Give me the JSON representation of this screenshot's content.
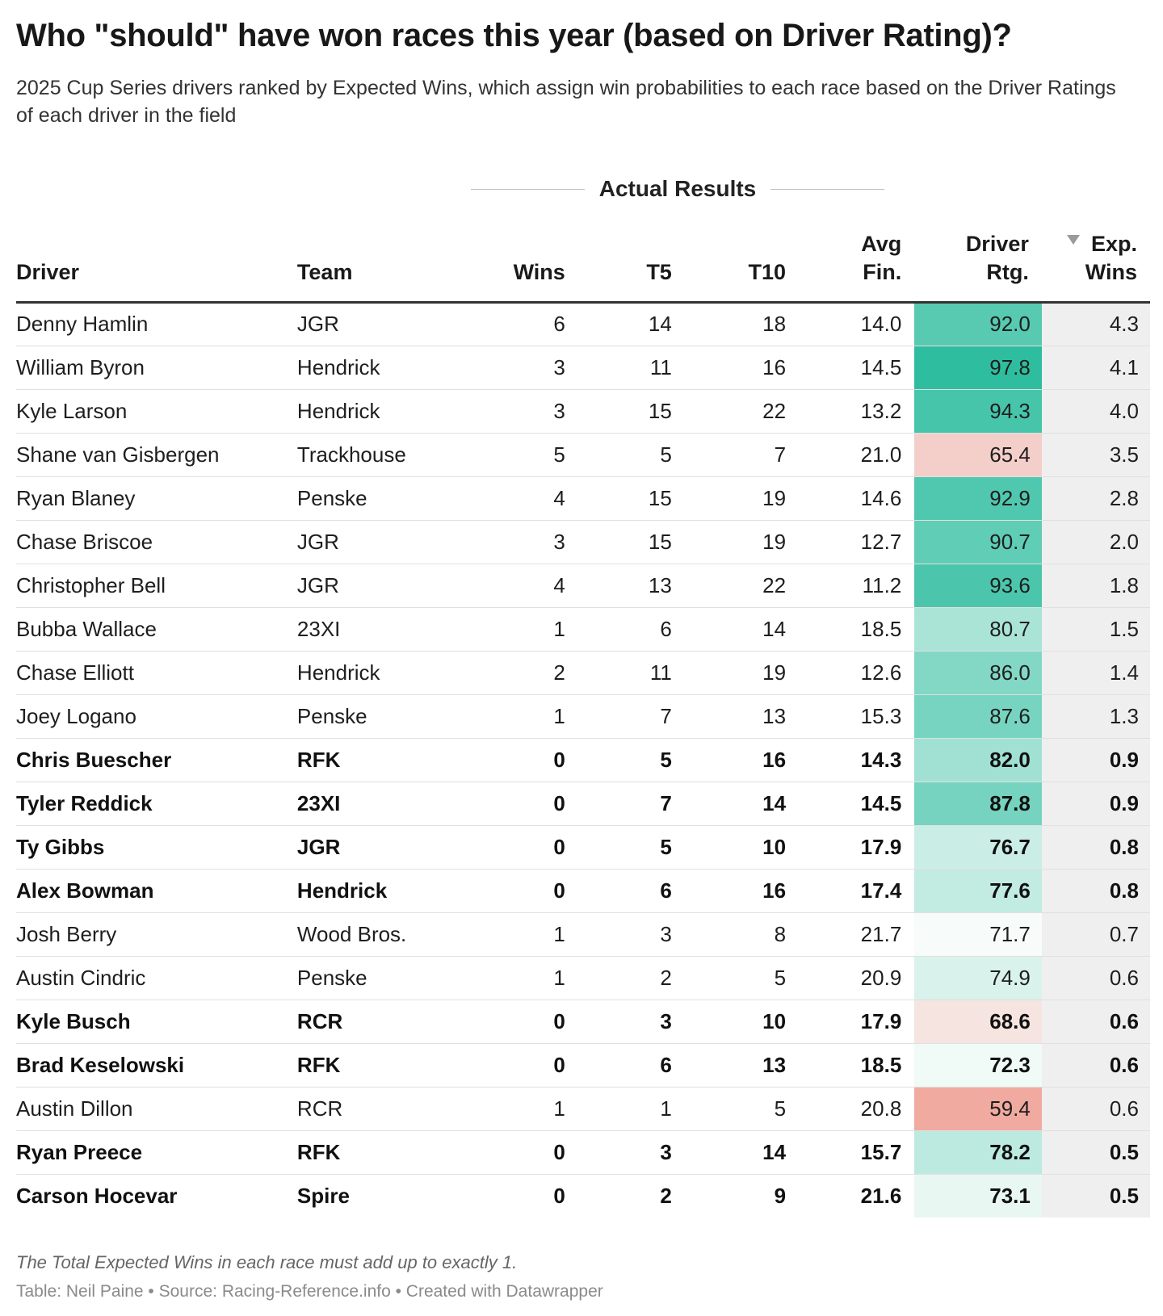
{
  "title": "Who \"should\" have won races this year (based on Driver Rating)?",
  "subtitle": "2025 Cup Series drivers ranked by Expected Wins, which assign win probabilities to each race based on the Driver Ratings of each driver in the field",
  "group_header": "Actual Results",
  "notes": "The Total Expected Wins in each race must add up to exactly 1.",
  "byline": "Table: Neil Paine • Source: Racing-Reference.info • Created with Datawrapper",
  "colors": {
    "rating_high": "#2ebd9f",
    "rating_mid": "#f7fcfa",
    "rating_low": "#f1aaa0",
    "exp_wins_bg": "#efefef",
    "header_rule": "#333333"
  },
  "chart_data": {
    "type": "table",
    "sorted_by": "Exp. Wins",
    "sort_order": "descending",
    "columns": [
      {
        "key": "driver",
        "label_lines": [
          "Driver"
        ],
        "align": "left"
      },
      {
        "key": "team",
        "label_lines": [
          "Team"
        ],
        "align": "left"
      },
      {
        "key": "wins",
        "label_lines": [
          "Wins"
        ],
        "align": "right"
      },
      {
        "key": "t5",
        "label_lines": [
          "T5"
        ],
        "align": "right"
      },
      {
        "key": "t10",
        "label_lines": [
          "T10"
        ],
        "align": "right"
      },
      {
        "key": "avg_fin",
        "label_lines": [
          "Avg",
          "Fin."
        ],
        "align": "right"
      },
      {
        "key": "driver_rtg",
        "label_lines": [
          "Driver",
          "Rtg."
        ],
        "align": "right"
      },
      {
        "key": "exp_wins",
        "label_lines": [
          "Exp.",
          "Wins"
        ],
        "align": "right",
        "sorted": true
      }
    ],
    "rows": [
      {
        "driver": "Denny Hamlin",
        "team": "JGR",
        "wins": 6,
        "t5": 14,
        "t10": 18,
        "avg_fin": "14.0",
        "driver_rtg": "92.0",
        "exp_wins": "4.3",
        "bold": false
      },
      {
        "driver": "William Byron",
        "team": "Hendrick",
        "wins": 3,
        "t5": 11,
        "t10": 16,
        "avg_fin": "14.5",
        "driver_rtg": "97.8",
        "exp_wins": "4.1",
        "bold": false
      },
      {
        "driver": "Kyle Larson",
        "team": "Hendrick",
        "wins": 3,
        "t5": 15,
        "t10": 22,
        "avg_fin": "13.2",
        "driver_rtg": "94.3",
        "exp_wins": "4.0",
        "bold": false
      },
      {
        "driver": "Shane van Gisbergen",
        "team": "Trackhouse",
        "wins": 5,
        "t5": 5,
        "t10": 7,
        "avg_fin": "21.0",
        "driver_rtg": "65.4",
        "exp_wins": "3.5",
        "bold": false
      },
      {
        "driver": "Ryan Blaney",
        "team": "Penske",
        "wins": 4,
        "t5": 15,
        "t10": 19,
        "avg_fin": "14.6",
        "driver_rtg": "92.9",
        "exp_wins": "2.8",
        "bold": false
      },
      {
        "driver": "Chase Briscoe",
        "team": "JGR",
        "wins": 3,
        "t5": 15,
        "t10": 19,
        "avg_fin": "12.7",
        "driver_rtg": "90.7",
        "exp_wins": "2.0",
        "bold": false
      },
      {
        "driver": "Christopher Bell",
        "team": "JGR",
        "wins": 4,
        "t5": 13,
        "t10": 22,
        "avg_fin": "11.2",
        "driver_rtg": "93.6",
        "exp_wins": "1.8",
        "bold": false
      },
      {
        "driver": "Bubba Wallace",
        "team": "23XI",
        "wins": 1,
        "t5": 6,
        "t10": 14,
        "avg_fin": "18.5",
        "driver_rtg": "80.7",
        "exp_wins": "1.5",
        "bold": false
      },
      {
        "driver": "Chase Elliott",
        "team": "Hendrick",
        "wins": 2,
        "t5": 11,
        "t10": 19,
        "avg_fin": "12.6",
        "driver_rtg": "86.0",
        "exp_wins": "1.4",
        "bold": false
      },
      {
        "driver": "Joey Logano",
        "team": "Penske",
        "wins": 1,
        "t5": 7,
        "t10": 13,
        "avg_fin": "15.3",
        "driver_rtg": "87.6",
        "exp_wins": "1.3",
        "bold": false
      },
      {
        "driver": "Chris Buescher",
        "team": "RFK",
        "wins": 0,
        "t5": 5,
        "t10": 16,
        "avg_fin": "14.3",
        "driver_rtg": "82.0",
        "exp_wins": "0.9",
        "bold": true
      },
      {
        "driver": "Tyler Reddick",
        "team": "23XI",
        "wins": 0,
        "t5": 7,
        "t10": 14,
        "avg_fin": "14.5",
        "driver_rtg": "87.8",
        "exp_wins": "0.9",
        "bold": true
      },
      {
        "driver": "Ty Gibbs",
        "team": "JGR",
        "wins": 0,
        "t5": 5,
        "t10": 10,
        "avg_fin": "17.9",
        "driver_rtg": "76.7",
        "exp_wins": "0.8",
        "bold": true
      },
      {
        "driver": "Alex Bowman",
        "team": "Hendrick",
        "wins": 0,
        "t5": 6,
        "t10": 16,
        "avg_fin": "17.4",
        "driver_rtg": "77.6",
        "exp_wins": "0.8",
        "bold": true
      },
      {
        "driver": "Josh Berry",
        "team": "Wood Bros.",
        "wins": 1,
        "t5": 3,
        "t10": 8,
        "avg_fin": "21.7",
        "driver_rtg": "71.7",
        "exp_wins": "0.7",
        "bold": false
      },
      {
        "driver": "Austin Cindric",
        "team": "Penske",
        "wins": 1,
        "t5": 2,
        "t10": 5,
        "avg_fin": "20.9",
        "driver_rtg": "74.9",
        "exp_wins": "0.6",
        "bold": false
      },
      {
        "driver": "Kyle Busch",
        "team": "RCR",
        "wins": 0,
        "t5": 3,
        "t10": 10,
        "avg_fin": "17.9",
        "driver_rtg": "68.6",
        "exp_wins": "0.6",
        "bold": true
      },
      {
        "driver": "Brad Keselowski",
        "team": "RFK",
        "wins": 0,
        "t5": 6,
        "t10": 13,
        "avg_fin": "18.5",
        "driver_rtg": "72.3",
        "exp_wins": "0.6",
        "bold": true
      },
      {
        "driver": "Austin Dillon",
        "team": "RCR",
        "wins": 1,
        "t5": 1,
        "t10": 5,
        "avg_fin": "20.8",
        "driver_rtg": "59.4",
        "exp_wins": "0.6",
        "bold": false
      },
      {
        "driver": "Ryan Preece",
        "team": "RFK",
        "wins": 0,
        "t5": 3,
        "t10": 14,
        "avg_fin": "15.7",
        "driver_rtg": "78.2",
        "exp_wins": "0.5",
        "bold": true
      },
      {
        "driver": "Carson Hocevar",
        "team": "Spire",
        "wins": 0,
        "t5": 2,
        "t10": 9,
        "avg_fin": "21.6",
        "driver_rtg": "73.1",
        "exp_wins": "0.5",
        "bold": true
      }
    ],
    "color_scale": {
      "column": "driver_rtg",
      "low_value": 59.4,
      "mid_value": 71.7,
      "high_value": 97.8
    }
  }
}
